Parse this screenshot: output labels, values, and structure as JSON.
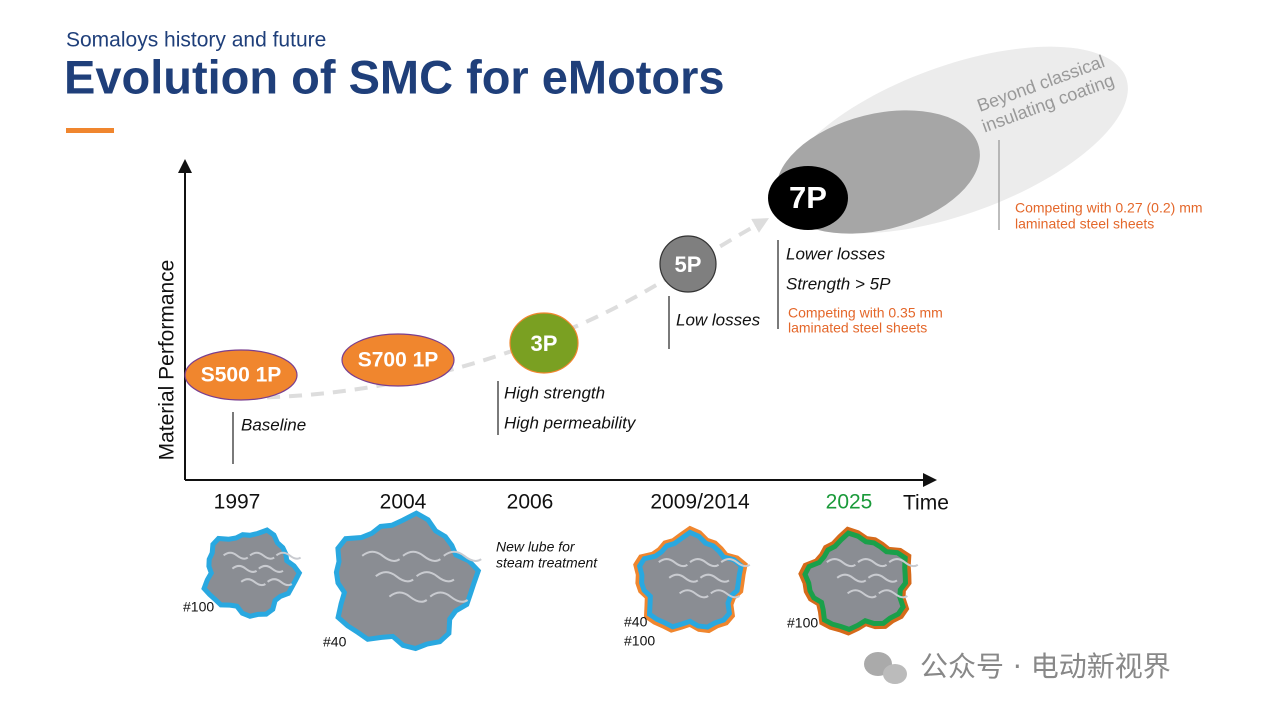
{
  "header": {
    "subtitle": "Somaloys history and future",
    "title": "Evolution of SMC for eMotors"
  },
  "axes": {
    "y_label": "Material Performance",
    "x_label": "Time"
  },
  "years": [
    "1997",
    "2004",
    "2006",
    "2009/2014",
    "2025"
  ],
  "nodes": [
    {
      "label": "S500 1P"
    },
    {
      "label": "S700 1P"
    },
    {
      "label": "3P"
    },
    {
      "label": "5P"
    },
    {
      "label": "7P"
    }
  ],
  "notes": {
    "baseline": "Baseline",
    "p3": [
      "High strength",
      "High permeability"
    ],
    "p5": "Low losses",
    "p7": [
      "Lower losses",
      "Strength > 5P"
    ],
    "competing_035": [
      "Competing with 0.35 mm",
      "laminated steel sheets"
    ],
    "beyond": [
      "Beyond classical",
      "insulating coating"
    ],
    "competing_027": [
      "Competing with 0.27 (0.2) mm",
      "laminated steel sheets"
    ]
  },
  "particles": {
    "p1997": [
      "#100"
    ],
    "p2004": [
      "#40"
    ],
    "lube": [
      "New lube for",
      "steam treatment"
    ],
    "p2009": [
      "#40",
      "#100"
    ],
    "p2025": [
      "#100"
    ]
  },
  "watermark": "公众号 · 电动新视界"
}
